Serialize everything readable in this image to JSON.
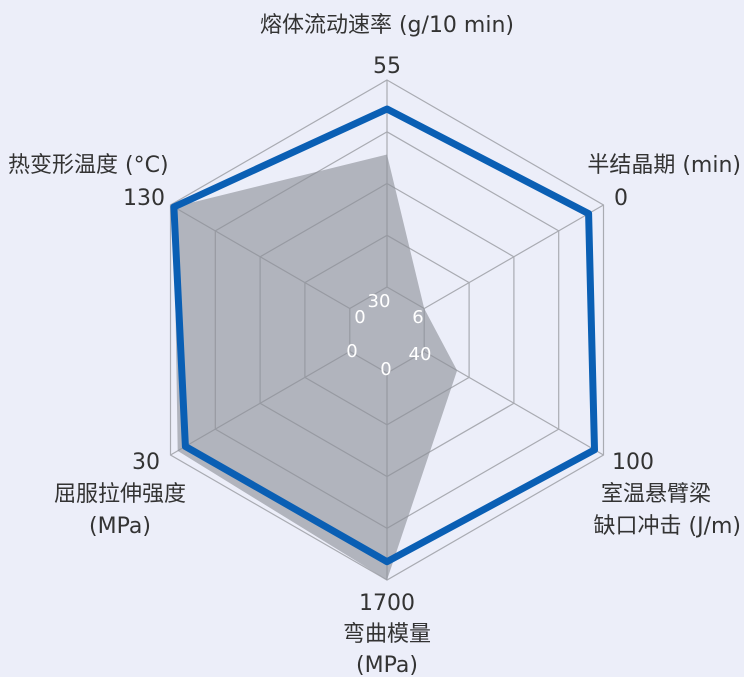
{
  "chart_data": {
    "type": "radar",
    "colors": {
      "background": "#eceef9",
      "grid": "#a9abb2",
      "area_fill": "#8d8f97",
      "outline": "#0a5fb4"
    },
    "axes": [
      {
        "id": "melt_flow",
        "label_lines": [
          "熔体流动速率 (g/10 min)"
        ],
        "inner_tick": "30",
        "outer_tick": "55",
        "range": [
          30,
          55
        ],
        "reversed": false
      },
      {
        "id": "half_cryst",
        "label_lines": [
          "半结晶期 (min)"
        ],
        "inner_tick": "6",
        "outer_tick": "0",
        "range": [
          6,
          0
        ],
        "reversed": true
      },
      {
        "id": "izod",
        "label_lines": [
          "室温悬臂梁",
          "缺口冲击 (J/m)"
        ],
        "inner_tick": "40",
        "outer_tick": "100",
        "range": [
          40,
          100
        ],
        "reversed": false
      },
      {
        "id": "flex_mod",
        "label_lines": [
          "弯曲模量",
          "(MPa)"
        ],
        "inner_tick": "0",
        "outer_tick": "1700",
        "range": [
          0,
          1700
        ],
        "reversed": false
      },
      {
        "id": "tensile",
        "label_lines": [
          "屈服拉伸强度",
          "(MPa)"
        ],
        "inner_tick": "0",
        "outer_tick": "30",
        "range": [
          0,
          30
        ],
        "reversed": false
      },
      {
        "id": "hdt",
        "label_lines": [
          "热变形温度 (°C)"
        ],
        "inner_tick": "0",
        "outer_tick": "130",
        "range": [
          0,
          130
        ],
        "reversed": false
      }
    ],
    "series": [
      {
        "style": "filled-area",
        "values": [
          46,
          6,
          51,
          1700,
          28.8,
          127.5
        ]
      },
      {
        "style": "outline",
        "values": [
          51.5,
          0.5,
          97,
          1550,
          27.5,
          127.5
        ]
      }
    ]
  }
}
